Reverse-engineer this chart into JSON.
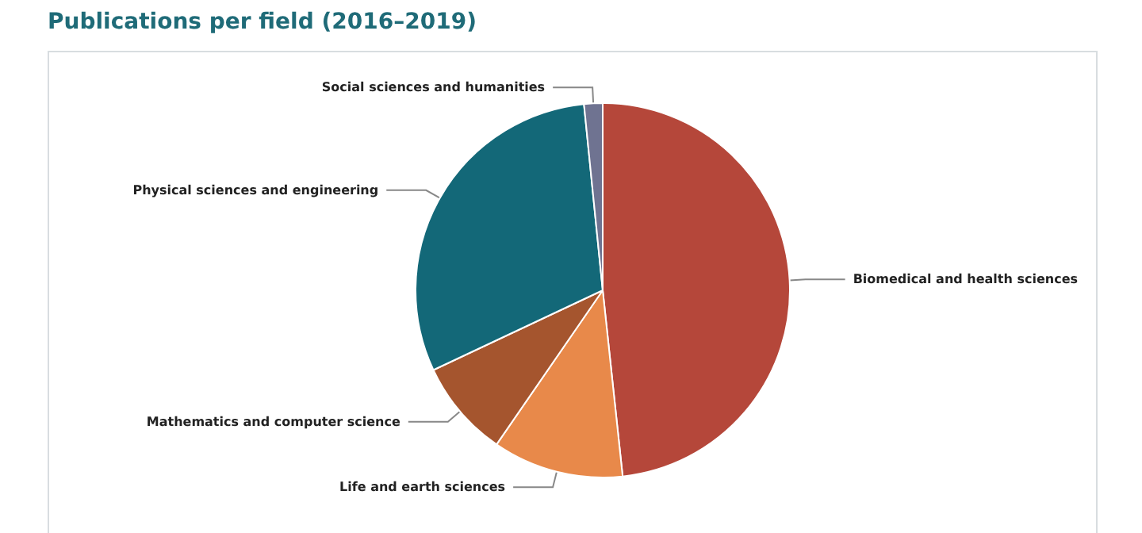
{
  "chart_data": {
    "type": "pie",
    "title": "Publications per field (2016–2019)",
    "categories": [
      "Biomedical and health sciences",
      "Life and earth sciences",
      "Mathematics and computer science",
      "Physical sciences and engineering",
      "Social sciences and humanities"
    ],
    "values": [
      48.3,
      11.3,
      8.4,
      30.4,
      1.6
    ],
    "colors": [
      "#b5473a",
      "#e8894a",
      "#a5552e",
      "#136878",
      "#6f7391"
    ],
    "legend": false
  }
}
